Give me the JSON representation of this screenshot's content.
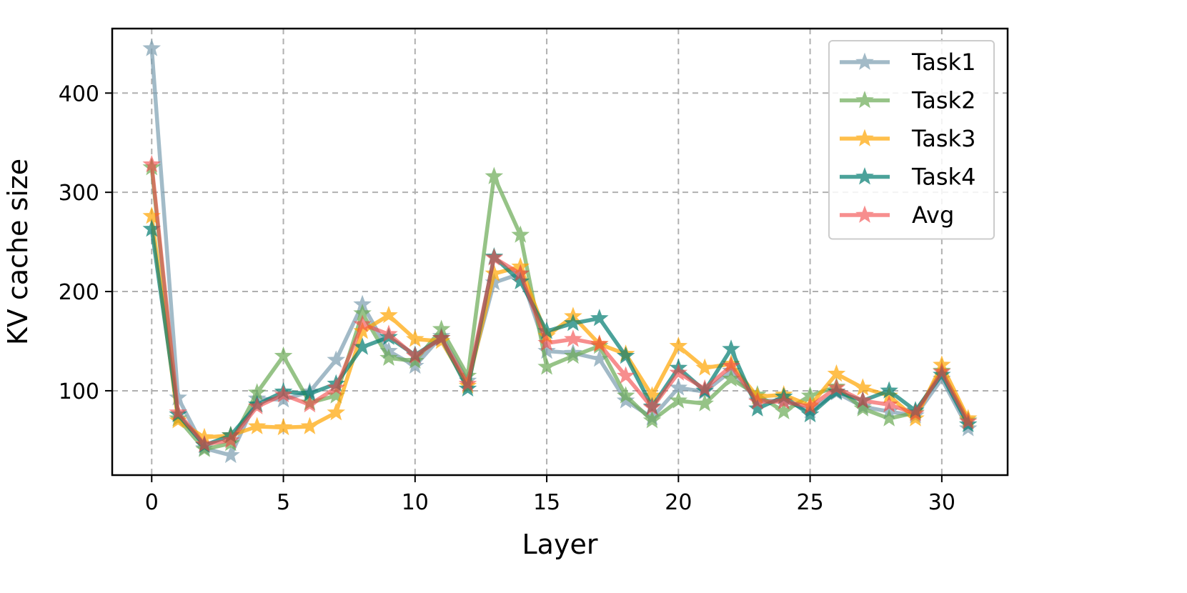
{
  "chart_data": {
    "type": "line",
    "title": "",
    "xlabel": "Layer",
    "ylabel": "KV cache size",
    "xlim": [
      -1.5,
      32.5
    ],
    "ylim": [
      15,
      465
    ],
    "xticks": [
      0,
      5,
      10,
      15,
      20,
      25,
      30
    ],
    "yticks": [
      100,
      200,
      300,
      400
    ],
    "grid": true,
    "legend_position": "top-right",
    "x": [
      0,
      1,
      2,
      3,
      4,
      5,
      6,
      7,
      8,
      9,
      10,
      11,
      12,
      13,
      14,
      15,
      16,
      17,
      18,
      19,
      20,
      21,
      22,
      23,
      24,
      25,
      26,
      27,
      28,
      29,
      30,
      31
    ],
    "series": [
      {
        "name": "Task1",
        "color": "#7b9eb0",
        "opacity": 0.7,
        "values": [
          445,
          93,
          42,
          35,
          92,
          91,
          99,
          131,
          187,
          140,
          125,
          155,
          110,
          209,
          218,
          140,
          138,
          132,
          90,
          73,
          103,
          99,
          120,
          90,
          90,
          80,
          98,
          84,
          79,
          75,
          112,
          62
        ]
      },
      {
        "name": "Task2",
        "color": "#6aaa55",
        "opacity": 0.7,
        "values": [
          325,
          72,
          41,
          47,
          98,
          135,
          88,
          95,
          178,
          133,
          130,
          162,
          115,
          316,
          257,
          124,
          135,
          145,
          95,
          70,
          90,
          87,
          112,
          96,
          79,
          95,
          104,
          82,
          72,
          78,
          120,
          70
        ]
      },
      {
        "name": "Task3",
        "color": "#ffa500",
        "opacity": 0.7,
        "values": [
          276,
          70,
          53,
          55,
          64,
          63,
          64,
          78,
          160,
          176,
          152,
          150,
          105,
          218,
          225,
          155,
          175,
          147,
          137,
          95,
          145,
          123,
          127,
          94,
          96,
          85,
          117,
          103,
          95,
          72,
          126,
          72
        ]
      },
      {
        "name": "Task4",
        "color": "#007b70",
        "opacity": 0.7,
        "values": [
          263,
          76,
          45,
          55,
          86,
          99,
          97,
          107,
          144,
          154,
          136,
          153,
          102,
          235,
          210,
          160,
          168,
          173,
          135,
          84,
          123,
          100,
          142,
          82,
          94,
          76,
          99,
          90,
          100,
          80,
          116,
          66
        ]
      },
      {
        "name": "Avg",
        "color": "#f24444",
        "opacity": 0.6,
        "values": [
          328,
          78,
          46,
          50,
          84,
          96,
          86,
          103,
          167,
          157,
          135,
          153,
          107,
          234,
          218,
          148,
          152,
          147,
          115,
          83,
          118,
          102,
          125,
          89,
          89,
          84,
          103,
          90,
          86,
          77,
          119,
          69
        ]
      }
    ]
  }
}
